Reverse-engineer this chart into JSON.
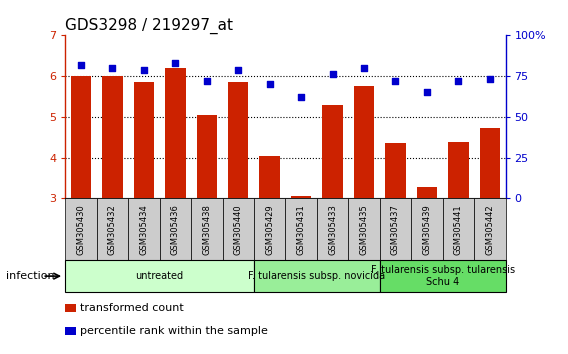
{
  "title": "GDS3298 / 219297_at",
  "samples": [
    "GSM305430",
    "GSM305432",
    "GSM305434",
    "GSM305436",
    "GSM305438",
    "GSM305440",
    "GSM305429",
    "GSM305431",
    "GSM305433",
    "GSM305435",
    "GSM305437",
    "GSM305439",
    "GSM305441",
    "GSM305442"
  ],
  "bar_values": [
    6.0,
    6.0,
    5.85,
    6.2,
    5.05,
    5.85,
    4.03,
    3.05,
    5.3,
    5.75,
    4.35,
    3.28,
    4.38,
    4.73
  ],
  "dot_values": [
    82,
    80,
    79,
    83,
    72,
    79,
    70,
    62,
    76,
    80,
    72,
    65,
    72,
    73
  ],
  "bar_color": "#CC2200",
  "dot_color": "#0000CC",
  "ylim": [
    3,
    7
  ],
  "y2lim": [
    0,
    100
  ],
  "yticks": [
    3,
    4,
    5,
    6,
    7
  ],
  "y2ticks": [
    0,
    25,
    50,
    75,
    100
  ],
  "y2ticklabels": [
    "0",
    "25",
    "50",
    "75",
    "100%"
  ],
  "dotted_lines": [
    4,
    5,
    6
  ],
  "groups": [
    {
      "label": "untreated",
      "start": 0,
      "end": 5,
      "color": "#CCFFCC"
    },
    {
      "label": "F. tularensis subsp. novicida",
      "start": 6,
      "end": 9,
      "color": "#99EE99"
    },
    {
      "label": "F. tularensis subsp. tularensis\nSchu 4",
      "start": 10,
      "end": 13,
      "color": "#66DD66"
    }
  ],
  "infection_label": "infection",
  "legend_items": [
    {
      "label": "transformed count",
      "color": "#CC2200"
    },
    {
      "label": "percentile rank within the sample",
      "color": "#0000CC"
    }
  ],
  "bar_bottom": 3.0,
  "bar_width": 0.65,
  "sample_bg_color": "#CCCCCC",
  "title_fontsize": 11,
  "tick_fontsize": 8,
  "sample_fontsize": 6,
  "group_fontsize": 7,
  "legend_fontsize": 8
}
